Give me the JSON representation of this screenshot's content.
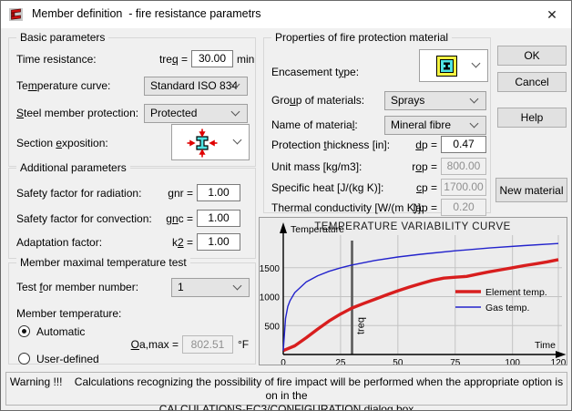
{
  "window": {
    "title": "Member definition  - fire resistance parametrs",
    "close_glyph": "✕"
  },
  "basic": {
    "legend": "Basic parameters",
    "time_resistance_label": "Time resistance:",
    "treq_sym": "tre<u>q</u> =",
    "treq_value": "30.00",
    "treq_unit": "min",
    "temp_curve_label": "Te<u>m</u>perature curve:",
    "temp_curve_value": "Standard ISO 834",
    "protection_label": "<u>S</u>teel member protection:",
    "protection_value": "Protected",
    "exposition_label": "Section <u>e</u>xposition:",
    "exposition_icon": "i-beam-exposed-four-sides"
  },
  "additional": {
    "legend": "Additional parameters",
    "radiation_label": "Safety factor for radiation:",
    "radiation_sym": "<u>g</u>nr =",
    "radiation_value": "1.00",
    "convection_label": "Safety factor for convection:",
    "convection_sym": "g<u>n</u>c =",
    "convection_value": "1.00",
    "adaptation_label": "Adaptation factor:",
    "adaptation_sym": "k<u>2</u> =",
    "adaptation_value": "1.00"
  },
  "member_test": {
    "legend": "Member maximal temperature test",
    "test_label": "Test <u>f</u>or member number:",
    "test_value": "1",
    "member_temp_label": "Member temperature:",
    "automatic_label": "Automatic",
    "user_defined_label": "User-defined",
    "theta_sym": "<u>O</u>a,max =",
    "theta_value": "802.51",
    "theta_unit": "°F"
  },
  "properties": {
    "legend": "Properties of fire protection material",
    "encasement_label": "Encasement t<u>y</u>pe:",
    "encasement_icon": "contour-encasement",
    "group_label": "Gro<u>u</u>p of materials:",
    "group_value": "Sprays",
    "name_label": "Name of materia<u>l</u>:",
    "name_value": "Mineral fibre",
    "thickness_label": "Protection <u>t</u>hickness [in]:",
    "thickness_sym": "<u>d</u>p =",
    "thickness_value": "0.47",
    "unit_mass_label": "Unit mass [kg/m3]:",
    "unit_mass_sym": "r<u>o</u>p =",
    "unit_mass_value": "800.00",
    "specific_heat_label": "Specific heat  [J/(kg K)]:",
    "specific_heat_sym": "<u>c</u>p =",
    "specific_heat_value": "1700.00",
    "conductivity_label": "Thermal conductivity  [W/(m K)]:",
    "conductivity_sym": "<u>l</u>ap =",
    "conductivity_value": "0.20"
  },
  "buttons": {
    "ok": "OK",
    "cancel": "Cancel",
    "help": "Help",
    "new_material": "New material"
  },
  "warning": {
    "line1": "Warning !!!    Calculations recognizing the possibility of fire impact will be performed when the appropriate option is on in the",
    "line2": "CALCULATIONS-EC3/CONFIGURATION dialog box"
  },
  "chart_data": {
    "type": "line",
    "title": "TEMPERATURE VARIABILITY CURVE",
    "ylabel": "Temperature",
    "xlabel": "Time",
    "xlim": [
      0,
      120
    ],
    "ylim": [
      0,
      2000
    ],
    "xticks": [
      0,
      25,
      50,
      75,
      100,
      120
    ],
    "yticks": [
      500,
      1000,
      1500
    ],
    "grid": true,
    "legend_position": "right",
    "marker_line": {
      "x": 30,
      "label": "treq",
      "color": "#5a5a5a"
    },
    "series": [
      {
        "name": "Element temp.",
        "color": "#d81e1e",
        "width": 3.4,
        "x": [
          0,
          5,
          10,
          15,
          20,
          25,
          30,
          35,
          40,
          45,
          50,
          55,
          60,
          65,
          70,
          75,
          80,
          85,
          90,
          95,
          100,
          105,
          110,
          115,
          120
        ],
        "y": [
          68,
          150,
          290,
          440,
          580,
          700,
          803,
          880,
          955,
          1030,
          1100,
          1165,
          1225,
          1280,
          1320,
          1335,
          1350,
          1390,
          1430,
          1465,
          1500,
          1535,
          1565,
          1600,
          1640
        ]
      },
      {
        "name": "Gas temp.",
        "color": "#2323cc",
        "width": 1.4,
        "x": [
          0,
          1,
          2,
          3,
          5,
          10,
          15,
          20,
          25,
          30,
          40,
          50,
          60,
          75,
          90,
          105,
          120
        ],
        "y": [
          68,
          624,
          831,
          932,
          1069,
          1253,
          1361,
          1438,
          1498,
          1547,
          1625,
          1685,
          1733,
          1792,
          1841,
          1882,
          1918
        ]
      }
    ]
  }
}
